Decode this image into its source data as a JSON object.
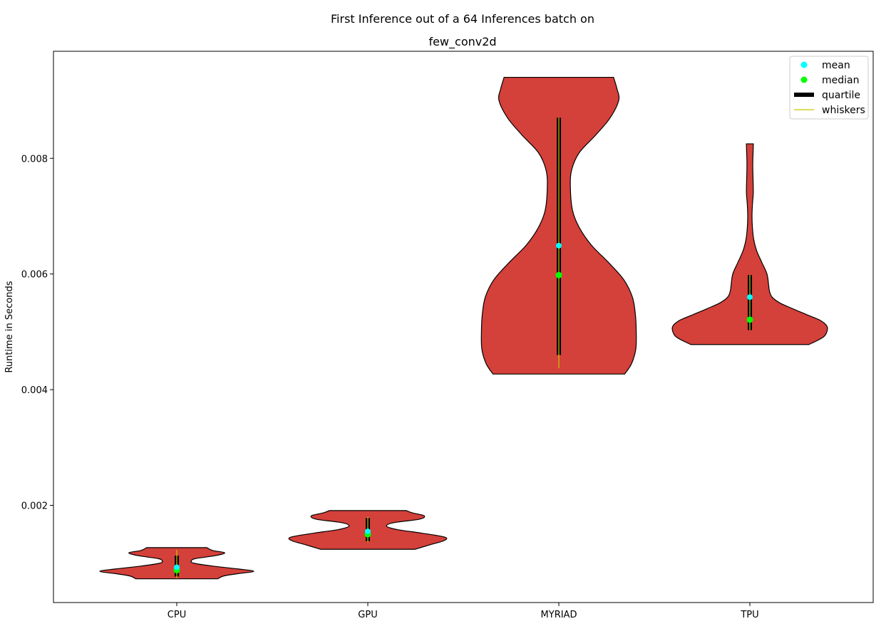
{
  "chart_data": {
    "type": "violin",
    "title": [
      "First Inference out of a 64 Inferences batch on",
      "few_conv2d"
    ],
    "ylabel": "Runtime in Seconds",
    "xlabel": "",
    "ylim": [
      0.00032,
      0.00985
    ],
    "yticks": [
      "0.002",
      "0.004",
      "0.006",
      "0.008"
    ],
    "ytick_values": [
      0.002,
      0.004,
      0.006,
      0.008
    ],
    "categories": [
      "CPU",
      "GPU",
      "MYRIAD",
      "TPU"
    ],
    "grid": false,
    "legend": {
      "placement": "top-right",
      "entries": [
        {
          "label": "mean",
          "marker": "dot",
          "color": "#00ffff"
        },
        {
          "label": "median",
          "marker": "dot",
          "color": "#00ff00"
        },
        {
          "label": "quartile",
          "marker": "thick-line",
          "color": "#000000"
        },
        {
          "label": "whiskers",
          "marker": "line",
          "color": "#c8c800"
        }
      ]
    },
    "colors": {
      "violin_fill": "#d4403a",
      "violin_edge": "#000000",
      "mean": "#00ffff",
      "median": "#00ff00",
      "quartile": "#000000",
      "whiskers": "#c8c800"
    },
    "violins": [
      {
        "category": "CPU",
        "min": 0.00073,
        "max": 0.00127,
        "whisker_low": 0.00074,
        "whisker_high": 0.00123,
        "q1": 0.00077,
        "q3": 0.00113,
        "median": 0.00088,
        "mean": 0.00093,
        "profile": [
          [
            0.00073,
            0.48
          ],
          [
            0.00078,
            0.55
          ],
          [
            0.00082,
            0.72
          ],
          [
            0.00086,
            0.9
          ],
          [
            0.0009,
            0.72
          ],
          [
            0.00095,
            0.42
          ],
          [
            0.001,
            0.2
          ],
          [
            0.00104,
            0.17
          ],
          [
            0.00108,
            0.22
          ],
          [
            0.00113,
            0.45
          ],
          [
            0.00118,
            0.56
          ],
          [
            0.00122,
            0.42
          ],
          [
            0.00127,
            0.35
          ]
        ]
      },
      {
        "category": "GPU",
        "min": 0.00124,
        "max": 0.00191,
        "whisker_low": 0.00136,
        "whisker_high": 0.0018,
        "q1": 0.00138,
        "q3": 0.00178,
        "median": 0.0015,
        "mean": 0.00155,
        "profile": [
          [
            0.00124,
            0.55
          ],
          [
            0.00132,
            0.73
          ],
          [
            0.00139,
            0.89
          ],
          [
            0.00145,
            0.9
          ],
          [
            0.00152,
            0.63
          ],
          [
            0.00158,
            0.35
          ],
          [
            0.00164,
            0.22
          ],
          [
            0.0017,
            0.3
          ],
          [
            0.00176,
            0.6
          ],
          [
            0.00182,
            0.66
          ],
          [
            0.00187,
            0.52
          ],
          [
            0.00191,
            0.45
          ]
        ]
      },
      {
        "category": "MYRIAD",
        "min": 0.00427,
        "max": 0.0094,
        "whisker_low": 0.00437,
        "whisker_high": 0.0087,
        "q1": 0.0046,
        "q3": 0.0087,
        "median": 0.00598,
        "mean": 0.00649,
        "profile": [
          [
            0.00427,
            0.77
          ],
          [
            0.00445,
            0.85
          ],
          [
            0.0047,
            0.9
          ],
          [
            0.005,
            0.905
          ],
          [
            0.0053,
            0.895
          ],
          [
            0.0056,
            0.86
          ],
          [
            0.0059,
            0.76
          ],
          [
            0.0062,
            0.58
          ],
          [
            0.0065,
            0.38
          ],
          [
            0.0068,
            0.24
          ],
          [
            0.0071,
            0.16
          ],
          [
            0.0075,
            0.135
          ],
          [
            0.0078,
            0.15
          ],
          [
            0.0081,
            0.24
          ],
          [
            0.0084,
            0.43
          ],
          [
            0.0087,
            0.6
          ],
          [
            0.009,
            0.7
          ],
          [
            0.0092,
            0.68
          ],
          [
            0.0094,
            0.64
          ]
        ]
      },
      {
        "category": "TPU",
        "min": 0.00478,
        "max": 0.00825,
        "whisker_low": 0.00503,
        "whisker_high": 0.00598,
        "q1": 0.00503,
        "q3": 0.00598,
        "median": 0.00521,
        "mean": 0.0056,
        "profile": [
          [
            0.00478,
            0.69
          ],
          [
            0.0049,
            0.85
          ],
          [
            0.005,
            0.9
          ],
          [
            0.0051,
            0.9
          ],
          [
            0.0052,
            0.82
          ],
          [
            0.0053,
            0.66
          ],
          [
            0.0054,
            0.5
          ],
          [
            0.0055,
            0.35
          ],
          [
            0.0056,
            0.26
          ],
          [
            0.0057,
            0.23
          ],
          [
            0.0058,
            0.22
          ],
          [
            0.006,
            0.2
          ],
          [
            0.0062,
            0.14
          ],
          [
            0.0064,
            0.08
          ],
          [
            0.0066,
            0.045
          ],
          [
            0.0068,
            0.03
          ],
          [
            0.007,
            0.025
          ],
          [
            0.0072,
            0.03
          ],
          [
            0.0074,
            0.04
          ],
          [
            0.0076,
            0.038
          ],
          [
            0.0079,
            0.034
          ],
          [
            0.0082,
            0.04
          ],
          [
            0.00825,
            0.04
          ]
        ]
      }
    ]
  }
}
